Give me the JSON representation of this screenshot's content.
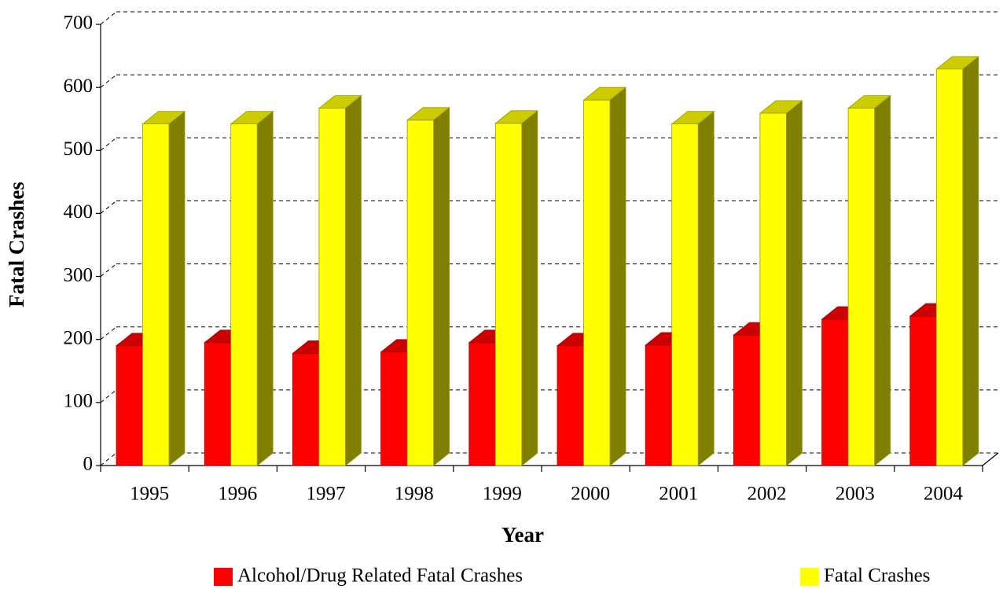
{
  "chart_data": {
    "type": "bar3d",
    "categories": [
      "1995",
      "1996",
      "1997",
      "1998",
      "1999",
      "2000",
      "2001",
      "2002",
      "2003",
      "2004"
    ],
    "series": [
      {
        "name": "Alcohol/Drug Related Fatal Crashes",
        "color": "#ff0000",
        "values": [
          190,
          195,
          178,
          180,
          195,
          190,
          191,
          207,
          232,
          237
        ]
      },
      {
        "name": "Fatal Crashes",
        "color": "#ffff00",
        "values": [
          542,
          542,
          567,
          548,
          543,
          580,
          542,
          559,
          567,
          629
        ]
      }
    ],
    "xlabel": "Year",
    "ylabel": "Fatal Crashes",
    "ylim": [
      0,
      700
    ],
    "yticks": [
      0,
      100,
      200,
      300,
      400,
      500,
      600,
      700
    ],
    "grid": true
  }
}
